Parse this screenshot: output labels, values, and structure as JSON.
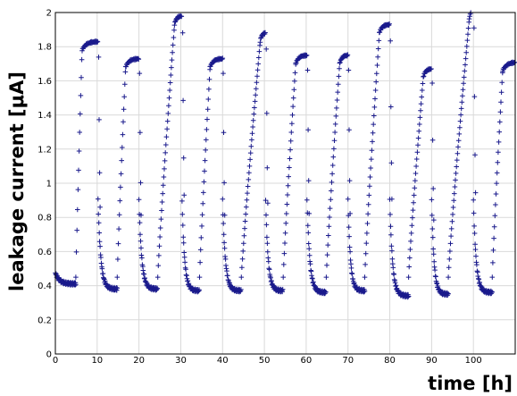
{
  "chart_data": {
    "type": "scatter",
    "title": "",
    "xlabel": "time [h]",
    "ylabel": "leakage current [μA]",
    "xlim": [
      0,
      110
    ],
    "ylim": [
      0,
      2.0
    ],
    "xticks": [
      "0",
      "10",
      "20",
      "30",
      "40",
      "50",
      "60",
      "70",
      "80",
      "90",
      "100"
    ],
    "yticks": [
      "0",
      "0.2",
      "0.4",
      "0.6",
      "0.8",
      "1",
      "1.2",
      "1.4",
      "1.6",
      "1.8",
      "2"
    ],
    "grid": true,
    "marker": "plus",
    "color": "#1a1a8c",
    "cycles": [
      {
        "start": -2,
        "rise_start": 4.9,
        "rise_end": 6.4,
        "decay_start": 10.2,
        "low": 0.41,
        "high": 1.83
      },
      {
        "start": 10.2,
        "rise_start": 14.8,
        "rise_end": 16.8,
        "decay_start": 20.0,
        "low": 0.38,
        "high": 1.73
      },
      {
        "start": 20.0,
        "rise_start": 24.5,
        "rise_end": 28.5,
        "decay_start": 30.3,
        "low": 0.38,
        "high": 1.98
      },
      {
        "start": 30.3,
        "rise_start": 34.5,
        "rise_end": 37.0,
        "decay_start": 40.0,
        "low": 0.37,
        "high": 1.73
      },
      {
        "start": 40.0,
        "rise_start": 44.5,
        "rise_end": 49.0,
        "decay_start": 50.3,
        "low": 0.37,
        "high": 1.88
      },
      {
        "start": 50.3,
        "rise_start": 54.5,
        "rise_end": 57.5,
        "decay_start": 60.2,
        "low": 0.37,
        "high": 1.75
      },
      {
        "start": 60.2,
        "rise_start": 64.8,
        "rise_end": 68.0,
        "decay_start": 70.0,
        "low": 0.36,
        "high": 1.75
      },
      {
        "start": 70.0,
        "rise_start": 74.0,
        "rise_end": 77.5,
        "decay_start": 80.0,
        "low": 0.37,
        "high": 1.93
      },
      {
        "start": 80.0,
        "rise_start": 84.5,
        "rise_end": 88.0,
        "decay_start": 90.0,
        "low": 0.34,
        "high": 1.67
      },
      {
        "start": 90.0,
        "rise_start": 94.0,
        "rise_end": 99.0,
        "decay_start": 100.0,
        "low": 0.35,
        "high": 2.01
      },
      {
        "start": 100.0,
        "rise_start": 104.5,
        "rise_end": 107.0,
        "decay_start": 111.0,
        "low": 0.36,
        "high": 1.71
      }
    ]
  }
}
